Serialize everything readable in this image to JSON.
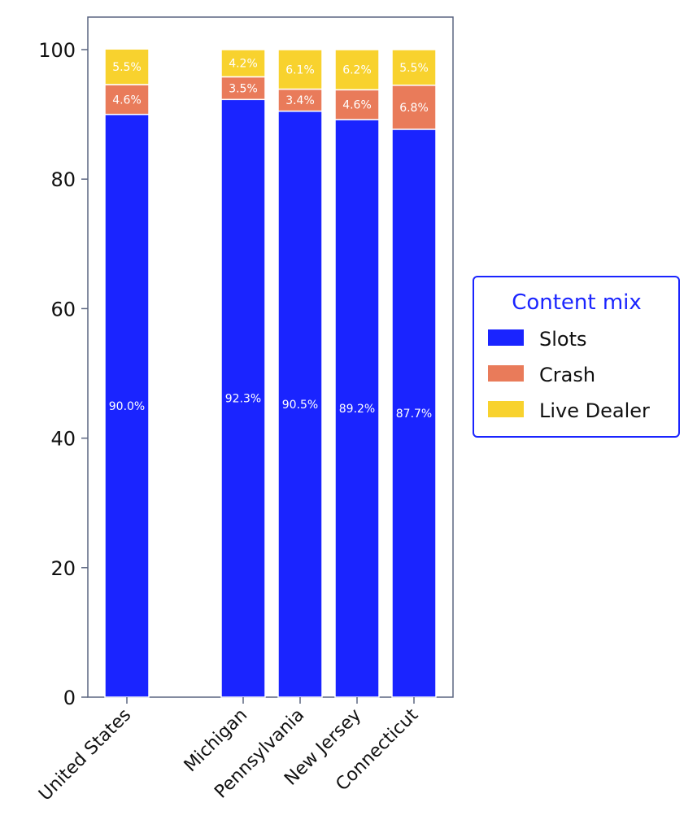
{
  "chart_data": {
    "type": "bar",
    "stacked": true,
    "categories": [
      "United States",
      "Michigan",
      "Pennsylvania",
      "New Jersey",
      "Connecticut"
    ],
    "series": [
      {
        "name": "Slots",
        "color": "#1a24ff",
        "values": [
          90.0,
          92.3,
          90.5,
          89.2,
          87.7
        ],
        "labels": [
          "90.0%",
          "92.3%",
          "90.5%",
          "89.2%",
          "87.7%"
        ]
      },
      {
        "name": "Crash",
        "color": "#e97b5a",
        "values": [
          4.6,
          3.5,
          3.4,
          4.6,
          6.8
        ],
        "labels": [
          "4.6%",
          "3.5%",
          "3.4%",
          "4.6%",
          "6.8%"
        ]
      },
      {
        "name": "Live Dealer",
        "color": "#f8d22e",
        "values": [
          5.5,
          4.2,
          6.1,
          6.2,
          5.5
        ],
        "labels": [
          "5.5%",
          "4.2%",
          "6.1%",
          "6.2%",
          "5.5%"
        ]
      }
    ],
    "ylim": [
      0,
      105
    ],
    "yticks": [
      "0",
      "20",
      "40",
      "60",
      "80",
      "100"
    ],
    "legend": {
      "title": "Content mix",
      "placement": "right",
      "title_color": "#1a24ff",
      "border_color": "#1a24ff"
    },
    "grid": false
  }
}
